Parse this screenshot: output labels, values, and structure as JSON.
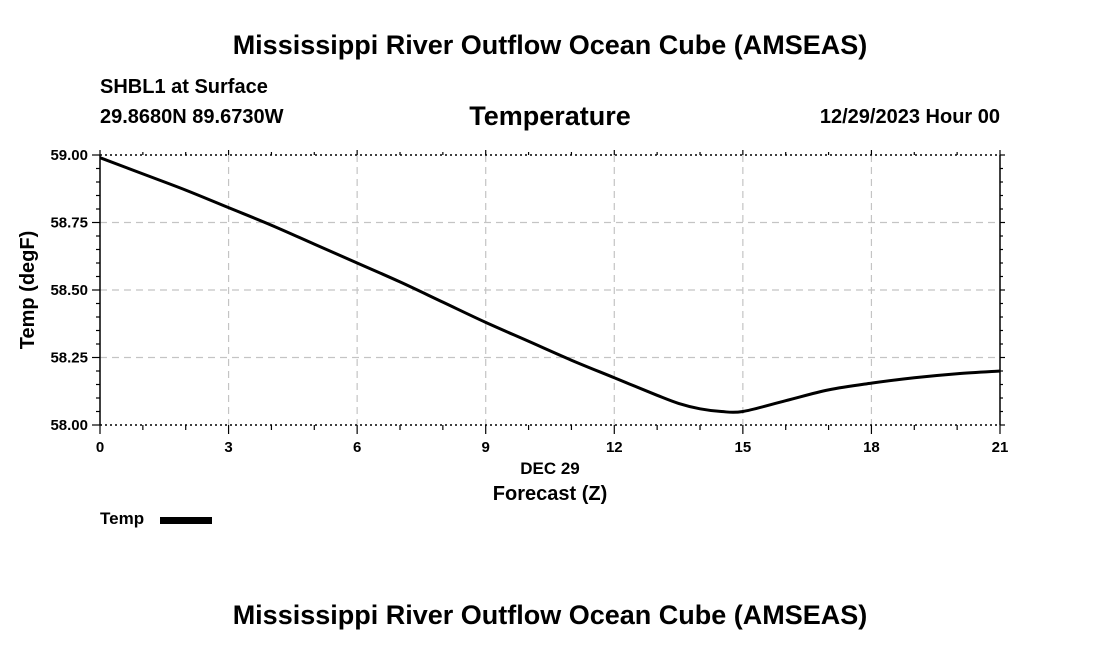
{
  "header": {
    "main_title": "Mississippi River Outflow Ocean Cube (AMSEAS)",
    "station": "SHBL1 at Surface",
    "coordinates": "29.8680N  89.6730W",
    "parameter": "Temperature",
    "datetime": "12/29/2023 Hour 00"
  },
  "footer": {
    "title": "Mississippi River Outflow Ocean Cube (AMSEAS)"
  },
  "legend": {
    "label": "Temp",
    "color": "#000000"
  },
  "chart_data": {
    "type": "line",
    "title": "Temperature",
    "xlabel": "Forecast (Z)",
    "xlabel_date": "DEC 29",
    "ylabel": "Temp (degF)",
    "xlim": [
      0,
      21
    ],
    "ylim": [
      58.0,
      59.0
    ],
    "x_ticks": [
      0,
      3,
      6,
      9,
      12,
      15,
      18,
      21
    ],
    "x_tick_labels": [
      "0",
      "3",
      "6",
      "9",
      "12",
      "15",
      "18",
      "21"
    ],
    "y_ticks": [
      58.0,
      58.25,
      58.5,
      58.75,
      59.0
    ],
    "y_tick_labels": [
      "58.00",
      "58.25",
      "58.50",
      "58.75",
      "59.00"
    ],
    "grid": true,
    "legend_position": "bottom-left",
    "series": [
      {
        "name": "Temp",
        "color": "#000000",
        "x": [
          0,
          1,
          2,
          3,
          4,
          5,
          6,
          7,
          8,
          9,
          10,
          11,
          12,
          13,
          13.5,
          14,
          14.5,
          15,
          16,
          17,
          18,
          19,
          20,
          21
        ],
        "y": [
          58.99,
          58.93,
          58.87,
          58.805,
          58.74,
          58.67,
          58.6,
          58.53,
          58.455,
          58.38,
          58.31,
          58.24,
          58.175,
          58.11,
          58.08,
          58.06,
          58.05,
          58.05,
          58.09,
          58.13,
          58.155,
          58.175,
          58.19,
          58.2
        ]
      }
    ]
  }
}
